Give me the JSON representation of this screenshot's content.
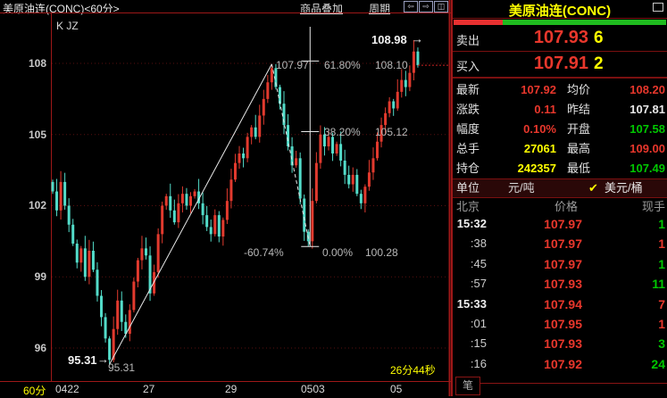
{
  "topbar": {
    "title": "美原油连(CONC)<60分>",
    "overlay_link": "商品叠加",
    "period_link": "周期",
    "btn_prev": "⇦",
    "btn_next": "⇨",
    "btn_split": "◫"
  },
  "chart": {
    "legend": "K JZ",
    "interval_label": "60分",
    "countdown": "26分44秒",
    "annotations": {
      "high_marker": "108.98",
      "high_arrow": "→",
      "low_marker": "95.31",
      "low_arrow": "→",
      "peak_label": "107.97",
      "trough_label": "95.31",
      "fib_618_pct": "61.80%",
      "fib_618_price": "108.10",
      "fib_382_pct": "38.20%",
      "fib_382_price": "105.12",
      "fib_neg_pct": "-60.74%",
      "fib_0_pct": "0.00%",
      "fib_0_price": "100.28"
    }
  },
  "chart_data": {
    "type": "candlestick",
    "title": "美原油连(CONC) 60分钟K线",
    "y_ticks": [
      108,
      105,
      102,
      99,
      96
    ],
    "ylim": [
      94.8,
      109.6
    ],
    "x_ticks": [
      {
        "label": "0422",
        "x": 62
      },
      {
        "label": "27",
        "x": 160
      },
      {
        "label": "29",
        "x": 252
      },
      {
        "label": "0503",
        "x": 337
      },
      {
        "label": "05",
        "x": 437
      }
    ],
    "closes": [
      102.6,
      101.8,
      103.0,
      102.0,
      101.2,
      100.4,
      99.6,
      100.2,
      99.0,
      100.1,
      99.3,
      98.2,
      97.3,
      96.4,
      95.5,
      96.8,
      98.0,
      97.1,
      96.6,
      97.6,
      98.8,
      99.7,
      100.2,
      99.9,
      98.3,
      99.2,
      100.8,
      102.0,
      102.4,
      101.8,
      101.3,
      102.1,
      102.5,
      102.0,
      102.4,
      102.6,
      102.1,
      101.6,
      101.1,
      100.8,
      101.6,
      100.7,
      101.4,
      102.2,
      103.1,
      103.8,
      104.2,
      104.0,
      104.9,
      105.3,
      104.9,
      105.8,
      106.5,
      107.2,
      107.8,
      107.0,
      106.3,
      105.4,
      104.5,
      103.7,
      104.0,
      102.3,
      100.9,
      100.5,
      102.2,
      103.8,
      105.0,
      104.5,
      104.9,
      104.2,
      104.6,
      103.9,
      103.3,
      102.9,
      103.3,
      102.5,
      102.1,
      102.8,
      103.4,
      104.0,
      104.7,
      105.4,
      105.9,
      106.4,
      106.1,
      106.8,
      107.3,
      107.0,
      107.6,
      108.5,
      107.92
    ],
    "special_wicks": {
      "14": {
        "low": 95.31
      },
      "54": {
        "high": 107.97
      },
      "63": {
        "low": 100.28
      },
      "89": {
        "high": 108.98
      }
    },
    "key_points": {
      "swing_low": 95.31,
      "swing_high": 107.97,
      "pullback_low": 100.28,
      "session_high": 108.98,
      "last": 107.92
    },
    "fib_levels": [
      {
        "pct": "61.80%",
        "price": 108.1
      },
      {
        "pct": "38.20%",
        "price": 105.12
      },
      {
        "pct": "0.00%",
        "price": 100.28
      }
    ],
    "colors": {
      "up": "#e23a2e",
      "down": "#53dcc9",
      "grid": "#581010",
      "frame": "#9e1818",
      "trend": "#e8e8e8"
    }
  },
  "panel": {
    "title": "美原油连(CONC)",
    "ratio_red_pct": 23,
    "sell": {
      "label": "卖出",
      "price": "107.93",
      "qty": "6"
    },
    "buy": {
      "label": "买入",
      "price": "107.91",
      "qty": "2"
    },
    "stats": [
      {
        "l1": "最新",
        "v1": "107.92",
        "c1": "c-r",
        "l2": "均价",
        "v2": "108.20",
        "c2": "c-r"
      },
      {
        "l1": "涨跌",
        "v1": "0.11",
        "c1": "c-r",
        "l2": "昨结",
        "v2": "107.81",
        "c2": "c-w"
      },
      {
        "l1": "幅度",
        "v1": "0.10%",
        "c1": "c-r",
        "l2": "开盘",
        "v2": "107.58",
        "c2": "c-g"
      },
      {
        "l1": "总手",
        "v1": "27061",
        "c1": "c-y",
        "l2": "最高",
        "v2": "109.00",
        "c2": "c-r"
      },
      {
        "l1": "持仓",
        "v1": "242357",
        "c1": "c-y",
        "l2": "最低",
        "v2": "107.49",
        "c2": "c-g"
      }
    ],
    "unit": {
      "label": "单位",
      "value1": "元/吨",
      "check": "✔",
      "value2": "美元/桶"
    },
    "ts_header": {
      "time": "北京",
      "price": "价格",
      "qty": "现手"
    },
    "trades": [
      {
        "time": "15:32",
        "full": true,
        "price": "107.97",
        "qty": "1",
        "qc": "c-g"
      },
      {
        "time": ":38",
        "full": false,
        "price": "107.97",
        "qty": "1",
        "qc": "c-r"
      },
      {
        "time": ":45",
        "full": false,
        "price": "107.97",
        "qty": "1",
        "qc": "c-g"
      },
      {
        "time": ":57",
        "full": false,
        "price": "107.93",
        "qty": "11",
        "qc": "c-g"
      },
      {
        "time": "15:33",
        "full": true,
        "price": "107.94",
        "qty": "7",
        "qc": "c-r"
      },
      {
        "time": ":01",
        "full": false,
        "price": "107.95",
        "qty": "1",
        "qc": "c-r"
      },
      {
        "time": ":15",
        "full": false,
        "price": "107.93",
        "qty": "3",
        "qc": "c-g"
      },
      {
        "time": ":16",
        "full": false,
        "price": "107.92",
        "qty": "24",
        "qc": "c-g"
      }
    ],
    "tab_label": "笔"
  }
}
